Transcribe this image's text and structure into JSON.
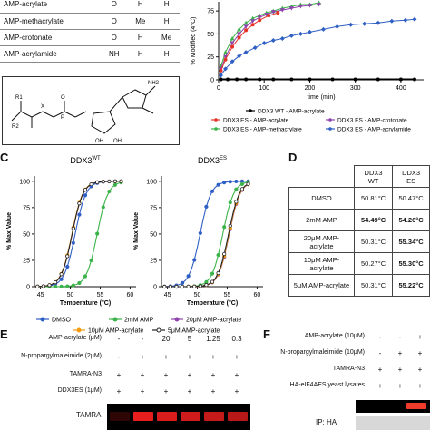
{
  "panel_a": {
    "rows": [
      {
        "name": "AMP-acrylate",
        "x": "O",
        "r1": "H",
        "r2": "H"
      },
      {
        "name": "AMP-methacrylate",
        "x": "O",
        "r1": "Me",
        "r2": "H"
      },
      {
        "name": "AMP-crotonate",
        "x": "O",
        "r1": "H",
        "r2": "Me"
      },
      {
        "name": "AMP-acrylamide",
        "x": "NH",
        "r1": "H",
        "r2": "H"
      }
    ],
    "structure_labels": {
      "nh2": "NH2",
      "x": "X",
      "p": "P",
      "o": "O",
      "oh1": "OH",
      "oh2": "OH",
      "r1": "R1",
      "r2": "R2"
    }
  },
  "panel_b": {
    "ylabel": "% Modified (4°C)",
    "xlabel": "time (min)",
    "ticks_x": [
      "0",
      "100",
      "200",
      "300",
      "400"
    ],
    "ticks_y": [
      "0",
      "25",
      "50",
      "75"
    ],
    "legend": [
      "DDX3 WT - AMP-acrylate",
      "DDX3 ES - AMP-acrylate",
      "DDX3 ES - AMP-crotonate",
      "DDX3 ES - AMP-methacrylate",
      "DDX3 ES - AMP-acrylamide"
    ],
    "colors": {
      "wt": "#000000",
      "acrylate": "#e5332a",
      "crotonate": "#8e44ad",
      "methacrylate": "#3cb34a",
      "acrylamide": "#2f5fc4"
    }
  },
  "panel_c": {
    "letter": "C",
    "title_wt": "DDX3",
    "sup_wt": "WT",
    "title_es": "DDX3",
    "sup_es": "ES",
    "ylabel": "% Max Value",
    "xlabel": "Temperature (°C)",
    "ticks_x": [
      "45",
      "50",
      "55",
      "60"
    ],
    "ticks_y": [
      "0",
      "25",
      "50",
      "75",
      "100"
    ],
    "legend": [
      "DMSO",
      "2mM AMP",
      "20μM AMP-acrylate",
      "10μM AMP-acrylate",
      "5μM AMP-acrylate"
    ]
  },
  "panel_d": {
    "letter": "D",
    "headers": [
      "DDX3 WT",
      "DDX3 ES"
    ],
    "rows": [
      {
        "label": "DMSO",
        "wt": "50.81°C",
        "es": "50.47°C",
        "bold_wt": false,
        "bold_es": false
      },
      {
        "label": "2mM AMP",
        "wt": "54.49°C",
        "es": "54.26°C",
        "bold_wt": true,
        "bold_es": true
      },
      {
        "label": "20μM AMP-acrylate",
        "wt": "50.31°C",
        "es": "55.34°C",
        "bold_wt": false,
        "bold_es": true
      },
      {
        "label": "10μM AMP-acrylate",
        "wt": "50.27°C",
        "es": "55.30°C",
        "bold_wt": false,
        "bold_es": true
      },
      {
        "label": "5μM AMP-acrylate",
        "wt": "50.31°C",
        "es": "55.22°C",
        "bold_wt": false,
        "bold_es": true
      }
    ]
  },
  "panel_e": {
    "letter": "E",
    "row1_label": "AMP-acrylate (μM)",
    "row1_vals": [
      "-",
      "-",
      "20",
      "5",
      "1.25",
      "0.3"
    ],
    "row2_label": "N-propargylmaleimide (2μM)",
    "row2_vals": [
      "-",
      "+",
      "+",
      "+",
      "+",
      "+"
    ],
    "row3_label": "TAMRA-N3",
    "row3_vals": [
      "+",
      "+",
      "+",
      "+",
      "+",
      "+"
    ],
    "row4_label": "DDX3ES (1μM)",
    "row4_vals": [
      "+",
      "+",
      "+",
      "+",
      "+",
      "+"
    ],
    "gel_label": "TAMRA"
  },
  "panel_f": {
    "letter": "F",
    "row1_label": "AMP-acrylate (10μM)",
    "row1_vals": [
      "-",
      "-",
      "+"
    ],
    "row2_label": "N-propargylmaleimide (10μM)",
    "row2_vals": [
      "-",
      "+",
      "+"
    ],
    "row3_label": "TAMRA-N3",
    "row3_vals": [
      "+",
      "+",
      "+"
    ],
    "row4_label": "HA-eIF4AES yeast lysates",
    "row4_vals": [
      "+",
      "+",
      "+"
    ],
    "gel_label": "IP: HA"
  }
}
